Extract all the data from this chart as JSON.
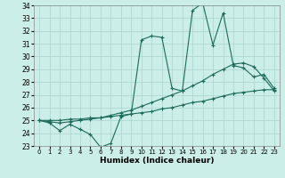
{
  "xlabel": "Humidex (Indice chaleur)",
  "bg_color": "#cceee8",
  "grid_color": "#aad4ce",
  "line_color": "#1a6b5a",
  "x_values": [
    0,
    1,
    2,
    3,
    4,
    5,
    6,
    7,
    8,
    9,
    10,
    11,
    12,
    13,
    14,
    15,
    16,
    17,
    18,
    19,
    20,
    21,
    22,
    23
  ],
  "line1": [
    25.0,
    24.8,
    24.2,
    24.7,
    24.3,
    23.9,
    22.9,
    23.2,
    25.3,
    25.5,
    31.3,
    31.6,
    31.5,
    27.5,
    27.3,
    33.6,
    34.2,
    30.9,
    33.4,
    29.3,
    29.1,
    28.4,
    28.6,
    27.5
  ],
  "line2": [
    25.0,
    24.9,
    24.8,
    24.9,
    25.0,
    25.1,
    25.2,
    25.4,
    25.6,
    25.8,
    26.1,
    26.4,
    26.7,
    27.0,
    27.3,
    27.7,
    28.1,
    28.6,
    29.0,
    29.4,
    29.5,
    29.2,
    28.3,
    27.3
  ],
  "line3": [
    25.0,
    25.0,
    25.0,
    25.1,
    25.1,
    25.2,
    25.2,
    25.3,
    25.4,
    25.5,
    25.6,
    25.7,
    25.9,
    26.0,
    26.2,
    26.4,
    26.5,
    26.7,
    26.9,
    27.1,
    27.2,
    27.3,
    27.4,
    27.4
  ],
  "ylim": [
    23,
    34
  ],
  "xlim": [
    -0.5,
    23.5
  ],
  "yticks": [
    23,
    24,
    25,
    26,
    27,
    28,
    29,
    30,
    31,
    32,
    33,
    34
  ],
  "xticks": [
    0,
    1,
    2,
    3,
    4,
    5,
    6,
    7,
    8,
    9,
    10,
    11,
    12,
    13,
    14,
    15,
    16,
    17,
    18,
    19,
    20,
    21,
    22,
    23
  ]
}
